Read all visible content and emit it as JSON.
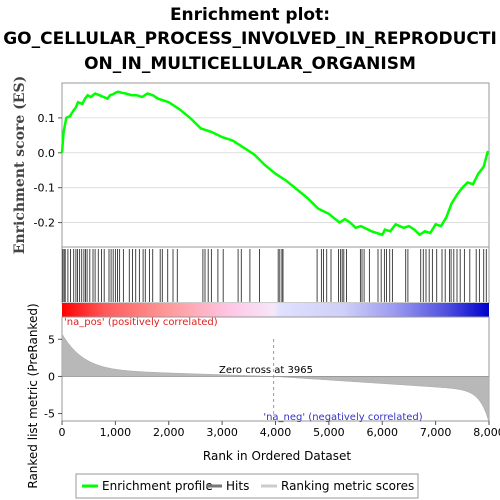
{
  "title_lines": [
    "Enrichment plot:",
    "GO_CELLULAR_PROCESS_INVOLVED_IN_REPRODUCTI",
    "ON_IN_MULTICELLULAR_ORGANISM"
  ],
  "chart_data": {
    "type": "line",
    "x_max": 8000,
    "es_ylabel": "Enrichment score (ES)",
    "es_ylim": [
      -0.27,
      0.2
    ],
    "es_yticks": [
      0.1,
      0.0,
      -0.1,
      -0.2
    ],
    "es_ytick_labels": [
      "0.1",
      "0.0",
      "-0.1",
      "-0.2"
    ],
    "es_series": {
      "name": "Enrichment profile",
      "color": "#00ff00",
      "points": [
        [
          0,
          0
        ],
        [
          30,
          0.06
        ],
        [
          80,
          0.1
        ],
        [
          150,
          0.105
        ],
        [
          210,
          0.12
        ],
        [
          260,
          0.13
        ],
        [
          300,
          0.145
        ],
        [
          380,
          0.14
        ],
        [
          430,
          0.155
        ],
        [
          480,
          0.165
        ],
        [
          540,
          0.16
        ],
        [
          620,
          0.17
        ],
        [
          700,
          0.165
        ],
        [
          780,
          0.16
        ],
        [
          850,
          0.155
        ],
        [
          900,
          0.165
        ],
        [
          960,
          0.168
        ],
        [
          1000,
          0.172
        ],
        [
          1050,
          0.175
        ],
        [
          1120,
          0.172
        ],
        [
          1200,
          0.17
        ],
        [
          1300,
          0.165
        ],
        [
          1400,
          0.165
        ],
        [
          1500,
          0.16
        ],
        [
          1600,
          0.17
        ],
        [
          1700,
          0.165
        ],
        [
          1800,
          0.155
        ],
        [
          1900,
          0.15
        ],
        [
          2000,
          0.145
        ],
        [
          2200,
          0.125
        ],
        [
          2400,
          0.1
        ],
        [
          2600,
          0.07
        ],
        [
          2800,
          0.06
        ],
        [
          3000,
          0.045
        ],
        [
          3200,
          0.035
        ],
        [
          3400,
          0.015
        ],
        [
          3600,
          -0.005
        ],
        [
          3800,
          -0.035
        ],
        [
          4000,
          -0.06
        ],
        [
          4200,
          -0.08
        ],
        [
          4400,
          -0.105
        ],
        [
          4600,
          -0.13
        ],
        [
          4800,
          -0.16
        ],
        [
          5000,
          -0.175
        ],
        [
          5200,
          -0.2
        ],
        [
          5300,
          -0.19
        ],
        [
          5400,
          -0.2
        ],
        [
          5500,
          -0.215
        ],
        [
          5600,
          -0.21
        ],
        [
          5800,
          -0.225
        ],
        [
          6000,
          -0.235
        ],
        [
          6050,
          -0.22
        ],
        [
          6150,
          -0.225
        ],
        [
          6250,
          -0.205
        ],
        [
          6400,
          -0.215
        ],
        [
          6500,
          -0.21
        ],
        [
          6600,
          -0.22
        ],
        [
          6700,
          -0.235
        ],
        [
          6800,
          -0.225
        ],
        [
          6900,
          -0.23
        ],
        [
          7000,
          -0.205
        ],
        [
          7100,
          -0.21
        ],
        [
          7200,
          -0.185
        ],
        [
          7300,
          -0.145
        ],
        [
          7400,
          -0.12
        ],
        [
          7500,
          -0.1
        ],
        [
          7600,
          -0.085
        ],
        [
          7700,
          -0.09
        ],
        [
          7800,
          -0.06
        ],
        [
          7900,
          -0.04
        ],
        [
          7980,
          0.005
        ]
      ]
    },
    "hits": [
      15,
      40,
      60,
      110,
      160,
      220,
      260,
      290,
      330,
      370,
      410,
      440,
      470,
      520,
      580,
      620,
      680,
      740,
      790,
      880,
      920,
      960,
      1000,
      1040,
      1080,
      1150,
      1260,
      1320,
      1380,
      1450,
      1520,
      1560,
      1640,
      1700,
      1840,
      1880,
      1980,
      2080,
      2160,
      2640,
      2680,
      2740,
      2800,
      2920,
      3020,
      3300,
      3360,
      3520,
      3700,
      4050,
      4080,
      4120,
      4140,
      4780,
      4860,
      4900,
      4960,
      5040,
      5180,
      5220,
      5250,
      5280,
      5330,
      5590,
      5620,
      5660,
      5760,
      5920,
      5980,
      6040,
      6080,
      6140,
      6190,
      6440,
      6480,
      6720,
      6770,
      6820,
      6880,
      6940,
      7020,
      7120,
      7180,
      7260,
      7290,
      7340,
      7400,
      7460,
      7540,
      7640,
      7760,
      7820,
      7900,
      7950
    ],
    "rank_ylabel": "Ranked list metric (PreRanked)",
    "rank_ylim": [
      -6,
      8
    ],
    "rank_yticks": [
      5,
      0,
      -5
    ],
    "rank_ytick_labels": [
      "5",
      "0",
      "-5"
    ],
    "xlabel": "Rank in Ordered Dataset",
    "xticks": [
      0,
      1000,
      2000,
      3000,
      4000,
      5000,
      6000,
      7000,
      8000
    ],
    "xtick_labels": [
      "0",
      "1,000",
      "2,000",
      "3,000",
      "4,000",
      "5,000",
      "6,000",
      "7,000",
      "8,000"
    ],
    "zero_cross": 3965,
    "zero_cross_label": "Zero cross at 3965",
    "pos_label": "'na_pos' (positively correlated)",
    "neg_label": "'na_neg' (negatively correlated)",
    "legend": [
      {
        "label": "Enrichment profile",
        "color": "#00ff00"
      },
      {
        "label": "Hits",
        "color": "#777777"
      },
      {
        "label": "Ranking metric scores",
        "color": "#cccccc"
      }
    ]
  }
}
